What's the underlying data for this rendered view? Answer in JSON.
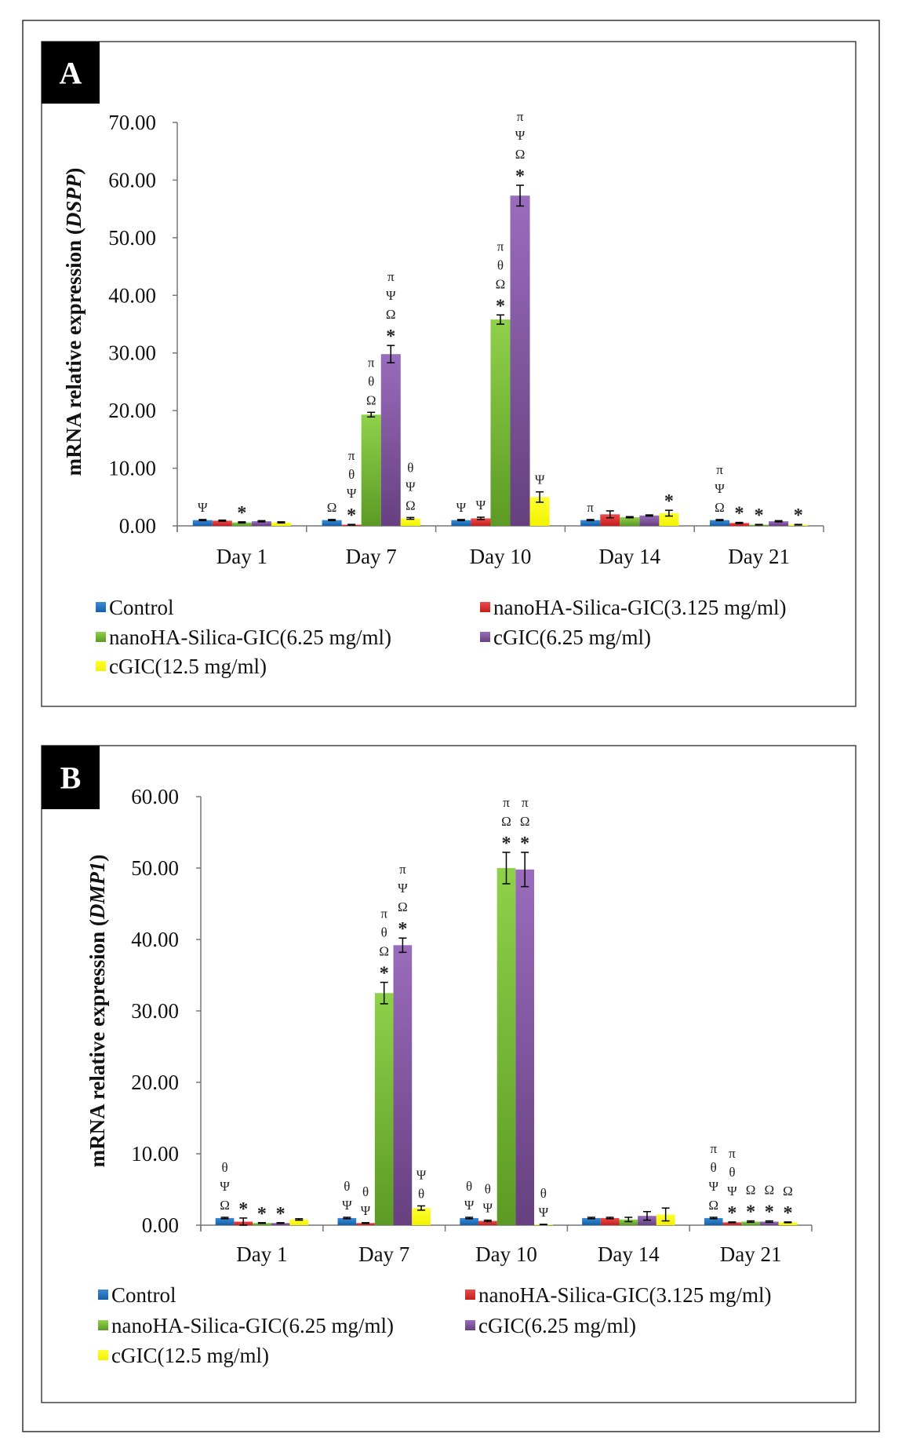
{
  "colors": {
    "Control": [
      "#3a8ad6",
      "#1460a8"
    ],
    "nanoHA-Silica-GIC(3.125 mg/ml)": [
      "#ee4a4a",
      "#c41f1f"
    ],
    "nanoHA-Silica-GIC(6.25 mg/ml)": [
      "#8fd14a",
      "#5c9a25"
    ],
    "cGIC(6.25 mg/ml)": [
      "#9a6cbd",
      "#66407f"
    ],
    "cGIC(12.5 mg/ml)": [
      "#ffff33",
      "#f2f200"
    ]
  },
  "chart_data": [
    {
      "panel_label": "A",
      "type": "bar",
      "ylabel_prefix": "mRNA relative expression (",
      "ylabel_gene": "DSPP",
      "ylabel_suffix": ")",
      "ylim": [
        0,
        70
      ],
      "yticks": [
        "0.00",
        "10.00",
        "20.00",
        "30.00",
        "40.00",
        "50.00",
        "60.00",
        "70.00"
      ],
      "categories": [
        "Day 1",
        "Day 7",
        "Day 10",
        "Day 14",
        "Day 21"
      ],
      "legend_position": "bottom",
      "series": [
        {
          "name": "Control",
          "values": [
            1.0,
            1.0,
            1.0,
            1.0,
            1.0
          ],
          "errors": [
            0.1,
            0.1,
            0.1,
            0.1,
            0.1
          ],
          "annotations": [
            [
              "Ψ"
            ],
            [
              "Ω"
            ],
            [
              "Ψ"
            ],
            [
              "π"
            ],
            [
              "π",
              "Ψ",
              "Ω"
            ]
          ]
        },
        {
          "name": "nanoHA-Silica-GIC(3.125 mg/ml)",
          "values": [
            0.9,
            0.2,
            1.3,
            2.0,
            0.5
          ],
          "errors": [
            0.1,
            0.05,
            0.2,
            0.6,
            0.1
          ],
          "annotations": [
            [],
            [
              "π",
              "θ",
              "Ψ",
              "*"
            ],
            [
              "Ψ"
            ],
            [],
            [
              "*"
            ]
          ]
        },
        {
          "name": "nanoHA-Silica-GIC(6.25 mg/ml)",
          "values": [
            0.6,
            19.3,
            35.8,
            1.5,
            0.2
          ],
          "errors": [
            0.1,
            0.4,
            0.8,
            0.1,
            0.05
          ],
          "annotations": [
            [
              "*"
            ],
            [
              "π",
              "θ",
              "Ω"
            ],
            [
              "π",
              "θ",
              "Ω",
              "*"
            ],
            [],
            [
              "*"
            ]
          ]
        },
        {
          "name": "cGIC(6.25 mg/ml)",
          "values": [
            0.8,
            29.8,
            57.3,
            1.8,
            0.8
          ],
          "errors": [
            0.1,
            1.5,
            1.8,
            0.1,
            0.1
          ],
          "annotations": [
            [],
            [
              "π",
              "Ψ",
              "Ω",
              "*"
            ],
            [
              "π",
              "Ψ",
              "Ω",
              "*"
            ],
            [],
            []
          ]
        },
        {
          "name": "cGIC(12.5 mg/ml)",
          "values": [
            0.6,
            1.3,
            5.0,
            2.2,
            0.2
          ],
          "errors": [
            0.1,
            0.15,
            0.9,
            0.5,
            0.05
          ],
          "annotations": [
            [],
            [
              "θ",
              "Ψ",
              "Ω"
            ],
            [
              "Ψ"
            ],
            [
              "*"
            ],
            [
              "*"
            ]
          ]
        }
      ]
    },
    {
      "panel_label": "B",
      "type": "bar",
      "ylabel_prefix": "mRNA relative  expression (",
      "ylabel_gene": "DMP1",
      "ylabel_suffix": ")",
      "ylim": [
        0,
        60
      ],
      "yticks": [
        "0.00",
        "10.00",
        "20.00",
        "30.00",
        "40.00",
        "50.00",
        "60.00"
      ],
      "categories": [
        "Day 1",
        "Day 7",
        "Day 10",
        "Day 14",
        "Day 21"
      ],
      "legend_position": "bottom",
      "series": [
        {
          "name": "Control",
          "values": [
            1.0,
            1.0,
            1.0,
            1.0,
            1.0
          ],
          "errors": [
            0.1,
            0.1,
            0.1,
            0.1,
            0.1
          ],
          "annotations": [
            [
              "θ",
              "Ψ",
              "Ω"
            ],
            [
              "θ",
              "Ψ"
            ],
            [
              "θ",
              "Ψ"
            ],
            [],
            [
              "π",
              "θ",
              "Ψ",
              "Ω"
            ]
          ]
        },
        {
          "name": "nanoHA-Silica-GIC(3.125 mg/ml)",
          "values": [
            0.5,
            0.3,
            0.6,
            1.0,
            0.4
          ],
          "errors": [
            0.5,
            0.05,
            0.1,
            0.1,
            0.05
          ],
          "annotations": [
            [
              "*"
            ],
            [
              "θ",
              "Ψ"
            ],
            [
              "θ",
              "Ψ"
            ],
            [],
            [
              "π",
              "θ",
              "Ψ",
              "*"
            ]
          ]
        },
        {
          "name": "nanoHA-Silica-GIC(6.25 mg/ml)",
          "values": [
            0.3,
            32.5,
            50.0,
            0.8,
            0.5
          ],
          "errors": [
            0.05,
            1.5,
            2.2,
            0.3,
            0.1
          ],
          "annotations": [
            [
              "*"
            ],
            [
              "π",
              "θ",
              "Ω",
              "*"
            ],
            [
              "π",
              "Ω",
              "*"
            ],
            [],
            [
              "Ω",
              "*"
            ]
          ]
        },
        {
          "name": "cGIC(6.25 mg/ml)",
          "values": [
            0.3,
            39.2,
            49.8,
            1.3,
            0.5
          ],
          "errors": [
            0.05,
            1.0,
            2.4,
            0.6,
            0.1
          ],
          "annotations": [
            [
              "*"
            ],
            [
              "π",
              "Ψ",
              "Ω",
              "*"
            ],
            [
              "π",
              "Ω",
              "*"
            ],
            [],
            [
              "Ω",
              "*"
            ]
          ]
        },
        {
          "name": "cGIC(12.5 mg/ml)",
          "values": [
            0.8,
            2.4,
            0.1,
            1.5,
            0.4
          ],
          "errors": [
            0.1,
            0.3,
            0.02,
            0.9,
            0.05
          ],
          "annotations": [
            [],
            [
              "Ψ",
              "θ"
            ],
            [
              "θ",
              "Ψ"
            ],
            [],
            [
              "Ω",
              "*"
            ]
          ]
        }
      ]
    }
  ]
}
